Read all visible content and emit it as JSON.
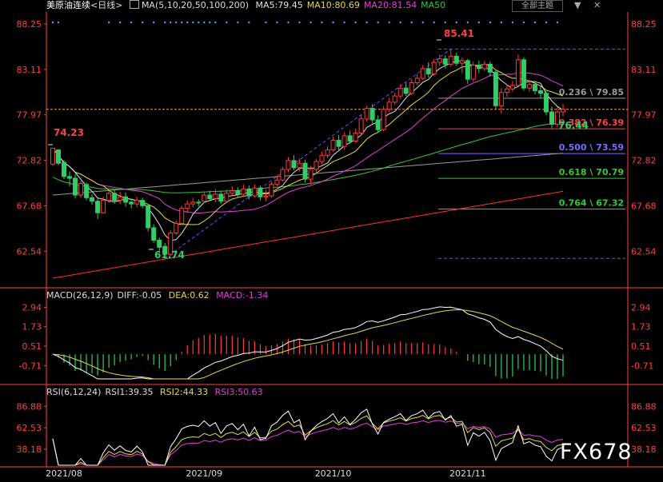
{
  "header": {
    "symbol": "美原油连续",
    "period": "<日线>",
    "ma_label": "MA(5,10,20,50,100,200)",
    "ma_values": [
      {
        "text": "MA5:79.45",
        "color": "#e0e0e0"
      },
      {
        "text": "MA10:80.69",
        "color": "#e6d84a"
      },
      {
        "text": "MA20:81.54",
        "color": "#e040d8"
      },
      {
        "text": "MA50",
        "color": "#34c934"
      }
    ],
    "theme_button": "全部主题",
    "window_buttons": [
      "▼",
      "✕"
    ]
  },
  "macd_header": {
    "title": "MACD(26,12,9)",
    "diff": "DIFF:-0.05",
    "dea": "DEA:0.62",
    "macd": "MACD:-1.34"
  },
  "rsi_header": {
    "title": "RSI(6,12,24)",
    "rsi1": "RSI1:39.35",
    "rsi2": "RSI2:44.33",
    "rsi3": "RSI3:50.63"
  },
  "watermark": "FX678",
  "colors": {
    "up": "#ff3c3c",
    "down": "#33cc66",
    "ma5": "#e0e0e0",
    "ma10": "#e6d84a",
    "ma20": "#e040d8",
    "ma50": "#34c934",
    "ma100": "#9a9a9a",
    "ma200": "#ff3030",
    "axis": "#ff4040",
    "fib_line": "#ff4040",
    "fib_purple": "#6a4cff"
  },
  "chart_data": [
    {
      "type": "candlestick",
      "title": "美原油连续 <日线>",
      "ylim": [
        58.6,
        89.6
      ],
      "yticks": [
        "88.25",
        "83.11",
        "77.97",
        "72.82",
        "67.68",
        "62.54"
      ],
      "xticks": [
        "2021/08",
        "2021/09",
        "2021/10",
        "2021/11"
      ],
      "annotations": [
        {
          "text": "74.23",
          "color": "#ff4040"
        },
        {
          "text": "61.74",
          "color": "#33cc66"
        },
        {
          "text": "85.41",
          "color": "#ff4040"
        },
        {
          "text": "76.44",
          "color": "#33cc66"
        }
      ],
      "fibonacci": [
        {
          "label": "0.236 \\ 79.85",
          "value": 79.85,
          "color": "#9a9a9a"
        },
        {
          "label": "0.382 \\ 76.39",
          "value": 76.39,
          "color": "#ff4040"
        },
        {
          "label": "0.500 \\ 73.59",
          "value": 73.59,
          "color": "#7a6cff"
        },
        {
          "label": "0.618 \\ 70.79",
          "value": 70.79,
          "color": "#34c934"
        },
        {
          "label": "0.764 \\ 67.32",
          "value": 67.32,
          "color": "#34c934"
        }
      ],
      "fib_top": 85.41,
      "fib_bottom": 61.74,
      "current_price": 78.6,
      "candles": [
        [
          72.4,
          74.2,
          74.2,
          72.2
        ],
        [
          74.0,
          72.5,
          74.1,
          72.3
        ],
        [
          72.6,
          71.0,
          72.9,
          70.7
        ],
        [
          71.0,
          70.8,
          71.6,
          69.9
        ],
        [
          70.8,
          68.9,
          71.3,
          68.5
        ],
        [
          68.9,
          70.2,
          70.5,
          68.6
        ],
        [
          70.1,
          68.6,
          70.3,
          68.3
        ],
        [
          68.6,
          68.2,
          69.0,
          67.8
        ],
        [
          68.2,
          66.9,
          68.5,
          66.2
        ],
        [
          66.9,
          68.3,
          68.7,
          66.8
        ],
        [
          68.3,
          69.1,
          69.4,
          68.0
        ],
        [
          69.1,
          68.3,
          69.5,
          67.9
        ],
        [
          68.3,
          68.7,
          69.3,
          67.9
        ],
        [
          68.7,
          68.1,
          69.2,
          67.6
        ],
        [
          68.1,
          67.9,
          68.5,
          67.4
        ],
        [
          67.9,
          68.3,
          68.7,
          67.5
        ],
        [
          68.3,
          67.7,
          68.6,
          67.4
        ],
        [
          67.7,
          65.2,
          67.9,
          64.8
        ],
        [
          65.2,
          63.8,
          65.6,
          63.5
        ],
        [
          63.8,
          63.0,
          64.1,
          62.3
        ],
        [
          63.1,
          62.2,
          63.5,
          61.7
        ],
        [
          62.2,
          64.6,
          64.9,
          62.0
        ],
        [
          64.6,
          65.7,
          66.0,
          64.4
        ],
        [
          65.7,
          67.4,
          67.7,
          65.5
        ],
        [
          67.4,
          67.9,
          68.3,
          66.9
        ],
        [
          67.9,
          68.1,
          68.6,
          67.5
        ],
        [
          68.1,
          68.0,
          68.4,
          67.6
        ],
        [
          68.2,
          68.9,
          69.3,
          68.0
        ],
        [
          68.9,
          68.5,
          69.4,
          68.2
        ],
        [
          68.5,
          69.0,
          69.6,
          68.1
        ],
        [
          69.0,
          68.2,
          69.4,
          67.9
        ],
        [
          68.2,
          69.1,
          69.5,
          68.0
        ],
        [
          69.1,
          69.4,
          69.9,
          68.8
        ],
        [
          69.4,
          69.0,
          69.8,
          68.6
        ],
        [
          69.0,
          69.6,
          70.1,
          68.7
        ],
        [
          69.6,
          68.8,
          70.0,
          68.4
        ],
        [
          68.8,
          69.7,
          70.1,
          68.6
        ],
        [
          69.7,
          68.7,
          70.0,
          68.3
        ],
        [
          68.7,
          68.8,
          69.5,
          68.2
        ],
        [
          68.8,
          70.1,
          70.4,
          68.6
        ],
        [
          70.1,
          70.6,
          71.1,
          69.9
        ],
        [
          70.6,
          71.8,
          72.1,
          70.4
        ],
        [
          71.8,
          72.8,
          73.2,
          71.5
        ],
        [
          72.8,
          72.0,
          73.4,
          71.7
        ],
        [
          72.0,
          72.5,
          73.0,
          71.6
        ],
        [
          72.5,
          70.7,
          72.9,
          70.3
        ],
        [
          70.7,
          71.8,
          72.2,
          70.2
        ],
        [
          71.8,
          72.7,
          73.0,
          71.3
        ],
        [
          72.7,
          73.4,
          73.8,
          72.4
        ],
        [
          73.4,
          74.0,
          74.4,
          73.1
        ],
        [
          74.0,
          75.1,
          75.5,
          73.8
        ],
        [
          75.1,
          74.4,
          75.7,
          74.0
        ],
        [
          74.4,
          75.6,
          76.0,
          74.1
        ],
        [
          75.6,
          75.0,
          76.2,
          74.7
        ],
        [
          75.0,
          75.9,
          76.4,
          74.8
        ],
        [
          75.9,
          77.5,
          78.0,
          75.6
        ],
        [
          77.5,
          78.7,
          79.0,
          77.2
        ],
        [
          78.7,
          77.4,
          79.2,
          77.0
        ],
        [
          77.4,
          76.3,
          77.9,
          75.9
        ],
        [
          76.3,
          78.6,
          79.0,
          76.1
        ],
        [
          78.6,
          79.4,
          79.9,
          78.3
        ],
        [
          79.4,
          80.1,
          80.5,
          79.1
        ],
        [
          80.1,
          81.0,
          81.4,
          79.8
        ],
        [
          81.0,
          80.4,
          81.6,
          80.1
        ],
        [
          80.4,
          81.6,
          82.0,
          80.2
        ],
        [
          81.6,
          82.1,
          82.6,
          81.3
        ],
        [
          82.1,
          83.2,
          83.6,
          81.9
        ],
        [
          83.2,
          82.6,
          83.9,
          82.2
        ],
        [
          82.6,
          83.9,
          84.3,
          82.4
        ],
        [
          83.9,
          84.3,
          84.8,
          83.5
        ],
        [
          84.3,
          83.7,
          84.7,
          83.2
        ],
        [
          83.7,
          84.6,
          85.41,
          83.4
        ],
        [
          84.6,
          83.8,
          85.0,
          83.5
        ],
        [
          83.8,
          84.1,
          84.5,
          82.7
        ],
        [
          84.1,
          82.0,
          84.3,
          81.5
        ],
        [
          82.0,
          83.6,
          84.0,
          81.7
        ],
        [
          83.6,
          83.2,
          84.1,
          82.7
        ],
        [
          83.2,
          83.7,
          84.1,
          82.9
        ],
        [
          83.7,
          82.8,
          84.0,
          82.3
        ],
        [
          82.8,
          79.0,
          83.1,
          78.6
        ],
        [
          79.0,
          80.5,
          81.0,
          78.1
        ],
        [
          80.5,
          80.9,
          81.4,
          80.0
        ],
        [
          80.9,
          81.3,
          81.8,
          80.6
        ],
        [
          81.3,
          84.2,
          84.8,
          81.2
        ],
        [
          84.2,
          81.0,
          84.5,
          80.7
        ],
        [
          81.0,
          81.4,
          81.9,
          80.6
        ],
        [
          81.4,
          80.7,
          81.8,
          80.3
        ],
        [
          80.7,
          80.4,
          81.2,
          79.9
        ],
        [
          80.4,
          78.3,
          80.8,
          77.9
        ],
        [
          78.3,
          76.9,
          78.9,
          76.44
        ],
        [
          76.9,
          78.3,
          78.9,
          76.6
        ],
        [
          78.3,
          78.6,
          79.2,
          77.8
        ]
      ]
    },
    {
      "type": "bar",
      "title": "MACD(26,12,9)",
      "ylim": [
        -1.55,
        3.32
      ],
      "yticks": [
        "2.94",
        "1.73",
        "0.51",
        "-0.71"
      ]
    },
    {
      "type": "line",
      "title": "RSI(6,12,24)",
      "ylim": [
        20.0,
        98.0
      ],
      "yticks": [
        "86.88",
        "62.53",
        "38.18"
      ]
    }
  ]
}
